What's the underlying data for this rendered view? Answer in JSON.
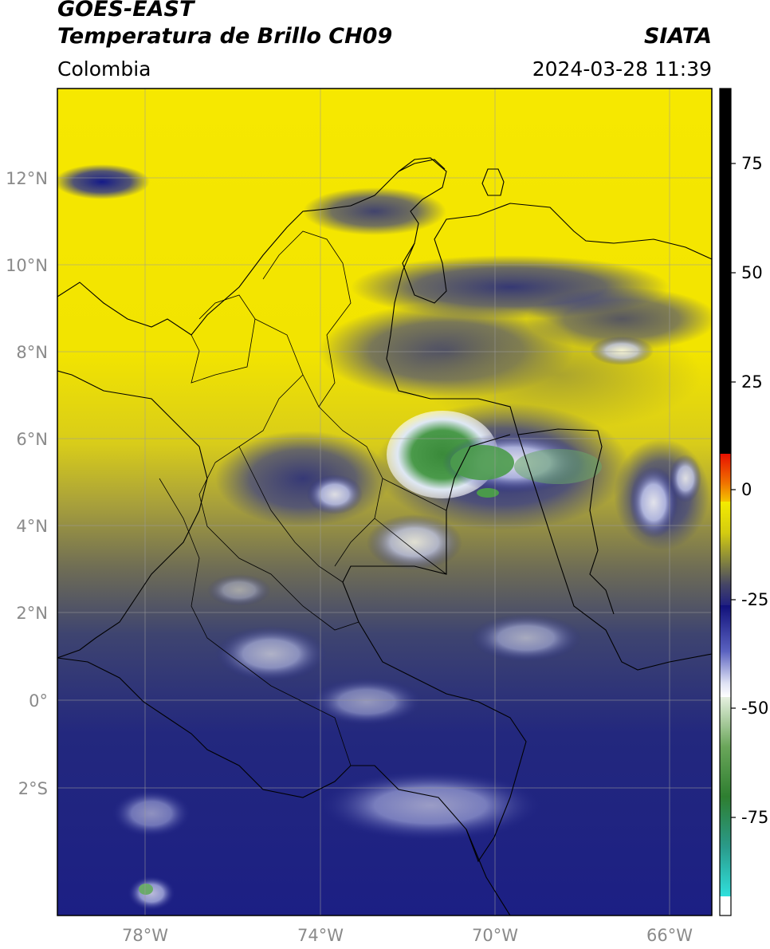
{
  "header": {
    "title_line1": "GOES-EAST",
    "title_line2": "Temperatura de Brillo CH09",
    "region": "Colombia",
    "brand": "SIATA",
    "datetime": "2024-03-28 11:39"
  },
  "map": {
    "lat_labels": [
      "12°N",
      "10°N",
      "8°N",
      "6°N",
      "4°N",
      "2°N",
      "0°",
      "2°S"
    ],
    "lon_labels": [
      "78°W",
      "74°W",
      "70°W",
      "66°W"
    ]
  },
  "colorbar": {
    "tick_labels": [
      "75",
      "50",
      "25",
      "0",
      "-25",
      "-50",
      "-75"
    ],
    "colors": {
      "black": "#000000",
      "red": "#e82000",
      "orange": "#f08c00",
      "yellow": "#f4e600",
      "olive": "#8a8a3a",
      "navy": "#1c1c86",
      "blue_white": "#9ea6e0",
      "green": "#3a8a36",
      "cyan": "#28d6d0"
    }
  }
}
